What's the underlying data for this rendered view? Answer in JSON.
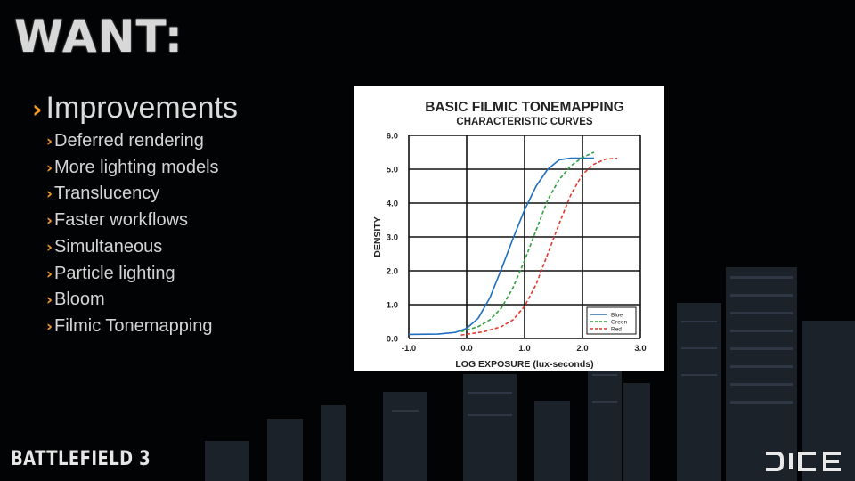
{
  "slide": {
    "title": "WANT:",
    "main_bullet": "Improvements",
    "sub_bullets": [
      "Deferred rendering",
      "More lighting models",
      "Translucency",
      "Faster workflows",
      "Simultaneous",
      "Particle lighting",
      "Bloom",
      "Filmic Tonemapping"
    ],
    "bullet_icon": "chevron-right-icon",
    "footer_logo_text": "BATTLEFIELD 3",
    "footer_logo_right": "DICE"
  },
  "colors": {
    "background": "#000000",
    "bullet_chevron": "#f39a2b",
    "text": "#d8d8d8"
  },
  "chart_data": {
    "type": "line",
    "title": "BASIC FILMIC TONEMAPPING",
    "subtitle": "CHARACTERISTIC CURVES",
    "xlabel": "LOG EXPOSURE (lux-seconds)",
    "ylabel": "DENSITY",
    "xlim": [
      -1.0,
      3.0
    ],
    "ylim": [
      0.0,
      6.0
    ],
    "x_tick_labels": [
      "-1.0",
      "0.0",
      "1.0",
      "2.0",
      "3.0"
    ],
    "y_tick_labels": [
      "0.0",
      "1.0",
      "2.0",
      "3.0",
      "4.0",
      "5.0",
      "6.0"
    ],
    "grid": true,
    "legend_position": "bottom-right",
    "series": [
      {
        "name": "Blue",
        "color": "#1f6fbf",
        "style": "solid",
        "x": [
          -1.0,
          -0.5,
          -0.2,
          0.0,
          0.2,
          0.4,
          0.6,
          0.8,
          1.0,
          1.2,
          1.4,
          1.6,
          1.8,
          2.0,
          2.2
        ],
        "y": [
          0.12,
          0.13,
          0.18,
          0.3,
          0.6,
          1.2,
          2.05,
          2.95,
          3.8,
          4.5,
          5.0,
          5.28,
          5.33,
          5.33,
          5.33
        ]
      },
      {
        "name": "Green",
        "color": "#2e9e3e",
        "style": "dashed",
        "x": [
          -0.1,
          0.2,
          0.4,
          0.6,
          0.8,
          1.0,
          1.2,
          1.4,
          1.6,
          1.8,
          2.0,
          2.2
        ],
        "y": [
          0.2,
          0.35,
          0.55,
          0.9,
          1.5,
          2.3,
          3.2,
          4.1,
          4.7,
          5.1,
          5.35,
          5.5
        ]
      },
      {
        "name": "Red",
        "color": "#e0392f",
        "style": "dashed",
        "x": [
          -0.1,
          0.3,
          0.6,
          0.8,
          1.0,
          1.2,
          1.4,
          1.6,
          1.8,
          2.0,
          2.2,
          2.4,
          2.6
        ],
        "y": [
          0.1,
          0.2,
          0.35,
          0.55,
          0.95,
          1.6,
          2.5,
          3.4,
          4.25,
          4.85,
          5.15,
          5.3,
          5.32
        ]
      }
    ]
  }
}
